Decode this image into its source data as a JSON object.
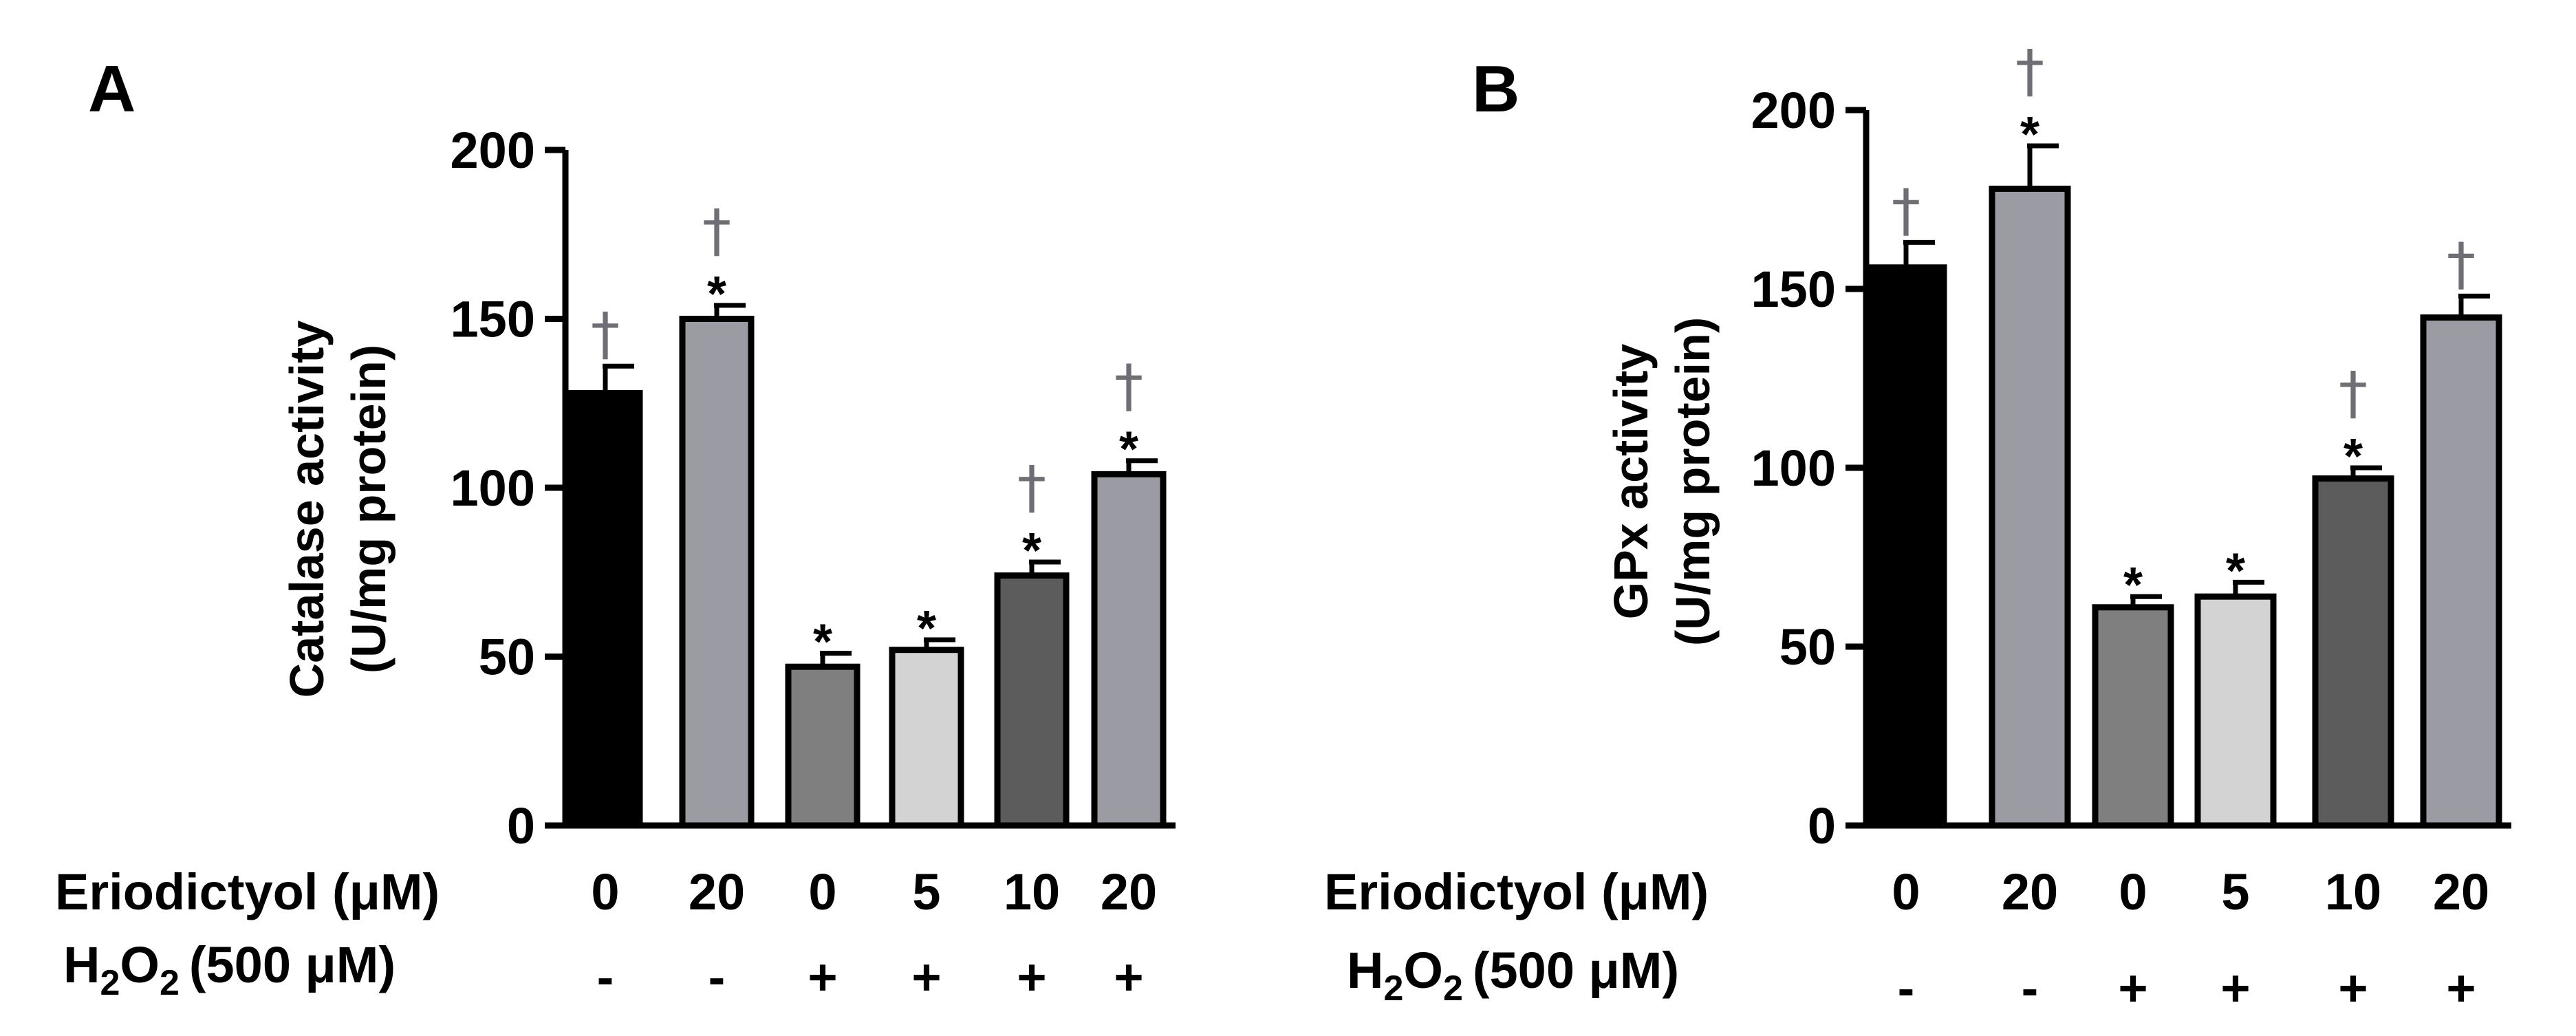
{
  "chart_data": [
    {
      "type": "bar",
      "panel": "A",
      "ylabel_line1": "Catalase activity",
      "ylabel_line2": "(U/mg protein)",
      "ylim": [
        0,
        200
      ],
      "yticks": [
        "0",
        "50",
        "100",
        "150",
        "200"
      ],
      "row1_label": "Eriodictyol (μM)",
      "row2_label": "(500 μM)",
      "row2_chem": "H2O2",
      "eriodictyol": [
        "0",
        "20",
        "0",
        "5",
        "10",
        "20"
      ],
      "h2o2": [
        "-",
        "-",
        "+",
        "+",
        "+",
        "+"
      ],
      "values": [
        128,
        150,
        47,
        52,
        74,
        104
      ],
      "errors": [
        8,
        4,
        4,
        3,
        4,
        4
      ],
      "star": [
        "",
        "*",
        "*",
        "*",
        "*",
        "*"
      ],
      "dagger": [
        "†",
        "†",
        "",
        "",
        "†",
        "†"
      ],
      "colors": [
        "#000000",
        "#9b9ba3",
        "#7f7f7f",
        "#d3d3d3",
        "#5c5c5c",
        "#9b9ba3"
      ]
    },
    {
      "type": "bar",
      "panel": "B",
      "ylabel_line1": "GPx activity",
      "ylabel_line2": "(U/mg protein)",
      "ylim": [
        0,
        200
      ],
      "yticks": [
        "0",
        "50",
        "100",
        "150",
        "200"
      ],
      "row1_label": "Eriodictyol (μM)",
      "row2_label": "(500 μM)",
      "row2_chem": "H2O2",
      "eriodictyol": [
        "0",
        "20",
        "0",
        "5",
        "10",
        "20"
      ],
      "h2o2": [
        "-",
        "-",
        "+",
        "+",
        "+",
        "+"
      ],
      "values": [
        156,
        178,
        61,
        64,
        97,
        142
      ],
      "errors": [
        7,
        12,
        3,
        4,
        3,
        6
      ],
      "star": [
        "",
        "*",
        "*",
        "*",
        "*",
        ""
      ],
      "dagger": [
        "†",
        "†",
        "",
        "",
        "†",
        "†"
      ],
      "colors": [
        "#000000",
        "#9b9ba3",
        "#7f7f7f",
        "#d3d3d3",
        "#5c5c5c",
        "#9b9ba3"
      ]
    }
  ]
}
